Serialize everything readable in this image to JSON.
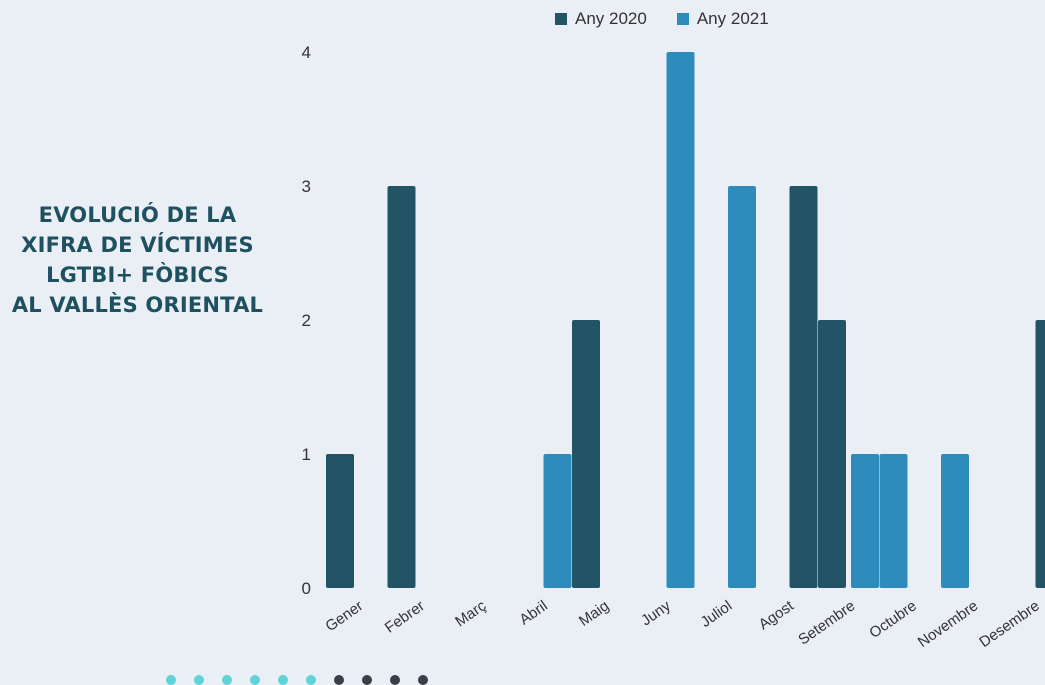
{
  "side_title": [
    "EVOLUCIÓ DE LA",
    "XIFRA DE VÍCTIMES",
    "LGTBI+ FÒBICS",
    "AL VALLÈS ORIENTAL"
  ],
  "colors": {
    "any2020": "#235466",
    "any2021": "#2d8cbc",
    "dot_light": "#5ed3d8",
    "dot_dark": "#3a3f4a"
  },
  "decorative_dots": {
    "light_count": 6,
    "dark_count": 4
  },
  "chart_data": {
    "type": "bar",
    "title": "",
    "xlabel": "",
    "ylabel": "",
    "ylim": [
      0,
      4
    ],
    "yticks": [
      0,
      1,
      2,
      3,
      4
    ],
    "grid": false,
    "legend_position": "top",
    "categories": [
      "Gener",
      "Febrer",
      "Març",
      "Abril",
      "Maig",
      "Juny",
      "Juliol",
      "Agost",
      "Setembre",
      "Octubre",
      "Novembre",
      "Desembre"
    ],
    "series": [
      {
        "name": "Any 2020",
        "color": "#235466",
        "values": [
          1,
          3,
          0,
          0,
          2,
          0,
          0,
          3,
          2,
          0,
          0,
          2
        ]
      },
      {
        "name": "Any 2021",
        "color": "#2d8cbc",
        "values": [
          0,
          0,
          0,
          1,
          0,
          4,
          3,
          0,
          1,
          1,
          1,
          0
        ]
      }
    ]
  }
}
